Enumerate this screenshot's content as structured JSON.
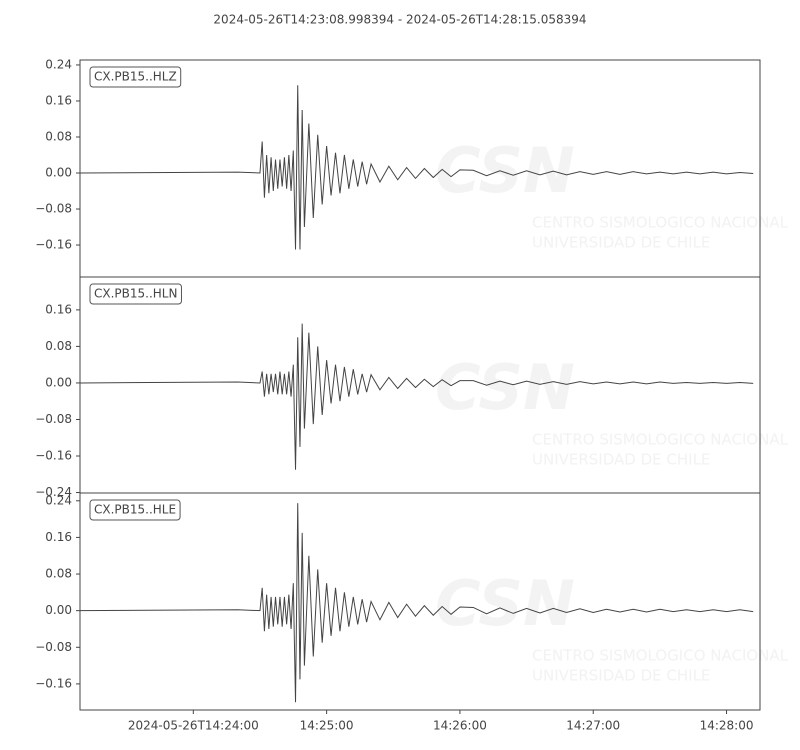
{
  "chart_data": [
    {
      "type": "line",
      "title": "2024-05-26T14:23:08.998394  -  2024-05-26T14:28:15.058394",
      "watermark": [
        "CSN",
        "CENTRO SISMOLOGICO NACIONAL",
        "UNIVERSIDAD DE CHILE"
      ],
      "legend": "upper left",
      "x": [
        51789,
        51860,
        51870,
        51871,
        51872,
        51873,
        51874,
        51875,
        51876,
        51877,
        51878,
        51879,
        51880,
        51881,
        51882,
        51883,
        51884,
        51885,
        51886,
        51887,
        51888,
        51889,
        51890,
        51892,
        51894,
        51896,
        51898,
        51900,
        51902,
        51904,
        51906,
        51908,
        51910,
        51912,
        51914,
        51916,
        51918,
        51920,
        51924,
        51928,
        51932,
        51936,
        51940,
        51944,
        51948,
        51952,
        51956,
        51960,
        51966,
        51972,
        51978,
        51984,
        51990,
        51996,
        52002,
        52008,
        52014,
        52020,
        52026,
        52032,
        52038,
        52044,
        52050,
        52056,
        52062,
        52068,
        52074,
        52080,
        52086,
        52092
      ],
      "series": [
        {
          "name": "CX.PB15..HLZ",
          "color": "#444444",
          "values": [
            0,
            0.002,
            0,
            0.07,
            -0.055,
            0.04,
            -0.045,
            0.035,
            -0.04,
            0.03,
            -0.035,
            0.03,
            -0.03,
            0.035,
            -0.035,
            0.04,
            -0.04,
            0.05,
            -0.17,
            0.195,
            -0.17,
            0.14,
            -0.12,
            0.11,
            -0.1,
            0.085,
            -0.07,
            0.06,
            -0.05,
            0.045,
            -0.045,
            0.04,
            -0.035,
            0.03,
            -0.03,
            0.025,
            -0.025,
            0.02,
            -0.02,
            0.015,
            -0.015,
            0.012,
            -0.012,
            0.01,
            -0.01,
            0.008,
            -0.008,
            0.007,
            0.006,
            -0.006,
            0.005,
            -0.005,
            0.005,
            -0.004,
            0.004,
            -0.004,
            0.003,
            -0.003,
            0.003,
            -0.003,
            0.003,
            -0.002,
            0.002,
            -0.002,
            0.002,
            -0.002,
            0.002,
            -0.002,
            0.001,
            -0.001
          ]
        }
      ],
      "xlim": [
        51788.998394,
        52095.058394
      ],
      "ylim": [
        -0.231,
        0.251
      ],
      "yticks": [
        0.24,
        0.16,
        0.08,
        {
          "value": 0,
          "label": "0.00"
        },
        {
          "value": -0.08,
          "label": "−0.08"
        },
        {
          "value": -0.16,
          "label": "−0.16"
        }
      ]
    },
    {
      "type": "line",
      "watermark": [
        "CSN",
        "CENTRO SISMOLOGICO NACIONAL",
        "UNIVERSIDAD DE CHILE"
      ],
      "legend": "upper left",
      "x": [
        51789,
        51860,
        51870,
        51871,
        51872,
        51873,
        51874,
        51875,
        51876,
        51877,
        51878,
        51879,
        51880,
        51881,
        51882,
        51883,
        51884,
        51885,
        51886,
        51887,
        51888,
        51889,
        51890,
        51892,
        51894,
        51896,
        51898,
        51900,
        51902,
        51904,
        51906,
        51908,
        51910,
        51912,
        51914,
        51916,
        51918,
        51920,
        51924,
        51928,
        51932,
        51936,
        51940,
        51944,
        51948,
        51952,
        51956,
        51960,
        51966,
        51972,
        51978,
        51984,
        51990,
        51996,
        52002,
        52008,
        52014,
        52020,
        52026,
        52032,
        52038,
        52044,
        52050,
        52056,
        52062,
        52068,
        52074,
        52080,
        52086,
        52092
      ],
      "series": [
        {
          "name": "CX.PB15..HLN",
          "color": "#444444",
          "values": [
            0,
            0.002,
            0,
            0.025,
            -0.03,
            0.02,
            -0.025,
            0.02,
            -0.02,
            0.02,
            -0.025,
            0.025,
            -0.025,
            0.02,
            -0.025,
            0.025,
            -0.03,
            0.04,
            -0.19,
            0.1,
            -0.14,
            0.13,
            -0.1,
            0.11,
            -0.09,
            0.08,
            -0.07,
            0.05,
            -0.045,
            0.04,
            -0.04,
            0.035,
            -0.03,
            0.03,
            -0.025,
            0.02,
            -0.02,
            0.018,
            -0.015,
            0.012,
            -0.012,
            0.01,
            -0.01,
            0.008,
            -0.008,
            0.007,
            -0.006,
            0.005,
            0.005,
            -0.005,
            0.004,
            -0.004,
            0.004,
            -0.003,
            0.003,
            -0.003,
            0.003,
            -0.002,
            0.002,
            -0.002,
            0.002,
            -0.002,
            0.002,
            -0.001,
            0.001,
            -0.001,
            0.001,
            -0.001,
            0.001,
            -0.001
          ]
        }
      ],
      "xlim": [
        51788.998394,
        52095.058394
      ],
      "ylim": [
        -0.241,
        0.232
      ],
      "yticks": [
        0.16,
        0.08,
        {
          "value": 0,
          "label": "0.00"
        },
        {
          "value": -0.08,
          "label": "−0.08"
        },
        {
          "value": -0.16,
          "label": "−0.16"
        },
        {
          "value": -0.24,
          "label": "−0.24"
        }
      ]
    },
    {
      "type": "line",
      "watermark": [
        "CSN",
        "CENTRO SISMOLOGICO NACIONAL",
        "UNIVERSIDAD DE CHILE"
      ],
      "legend": "upper left",
      "x": [
        51789,
        51860,
        51870,
        51871,
        51872,
        51873,
        51874,
        51875,
        51876,
        51877,
        51878,
        51879,
        51880,
        51881,
        51882,
        51883,
        51884,
        51885,
        51886,
        51887,
        51888,
        51889,
        51890,
        51892,
        51894,
        51896,
        51898,
        51900,
        51902,
        51904,
        51906,
        51908,
        51910,
        51912,
        51914,
        51916,
        51918,
        51920,
        51924,
        51928,
        51932,
        51936,
        51940,
        51944,
        51948,
        51952,
        51956,
        51960,
        51966,
        51972,
        51978,
        51984,
        51990,
        51996,
        52002,
        52008,
        52014,
        52020,
        52026,
        52032,
        52038,
        52044,
        52050,
        52056,
        52062,
        52068,
        52074,
        52080,
        52086,
        52092
      ],
      "series": [
        {
          "name": "CX.PB15..HLE",
          "color": "#444444",
          "values": [
            0,
            0.002,
            0,
            0.05,
            -0.045,
            0.035,
            -0.04,
            0.03,
            -0.035,
            0.03,
            -0.03,
            0.03,
            -0.035,
            0.03,
            -0.03,
            0.035,
            -0.04,
            0.06,
            -0.2,
            0.235,
            -0.15,
            0.17,
            -0.12,
            0.12,
            -0.1,
            0.09,
            -0.07,
            0.06,
            -0.055,
            0.05,
            -0.045,
            0.04,
            -0.035,
            0.03,
            -0.03,
            0.025,
            -0.025,
            0.02,
            -0.02,
            0.018,
            -0.015,
            0.014,
            -0.012,
            0.011,
            -0.01,
            0.009,
            -0.008,
            0.008,
            0.007,
            -0.007,
            0.006,
            -0.006,
            0.005,
            -0.005,
            0.005,
            -0.004,
            0.004,
            -0.004,
            0.003,
            -0.003,
            0.003,
            -0.003,
            0.003,
            -0.002,
            0.002,
            -0.002,
            0.002,
            -0.002,
            0.002,
            -0.002
          ]
        }
      ],
      "xlim": [
        51788.998394,
        52095.058394
      ],
      "ylim": [
        -0.217,
        0.257
      ],
      "yticks": [
        0.24,
        0.16,
        0.08,
        {
          "value": 0,
          "label": "0.00"
        },
        {
          "value": -0.08,
          "label": "−0.08"
        },
        {
          "value": -0.16,
          "label": "−0.16"
        }
      ],
      "xticks": [
        {
          "value": 51840,
          "label": "2024-05-26T14:24:00"
        },
        {
          "value": 51900,
          "label": "14:25:00"
        },
        {
          "value": 51960,
          "label": "14:26:00"
        },
        {
          "value": 52020,
          "label": "14:27:00"
        },
        {
          "value": 52080,
          "label": "14:28:00"
        }
      ]
    }
  ]
}
